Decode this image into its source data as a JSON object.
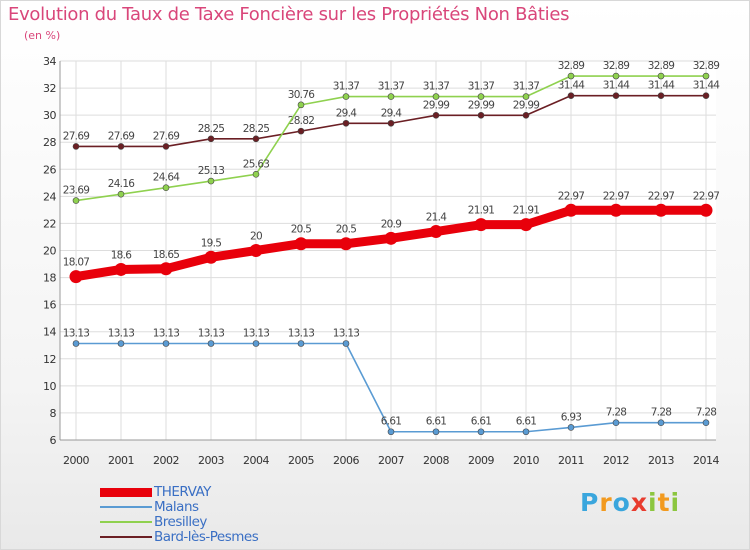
{
  "title": "Evolution du Taux de Taxe Foncière sur les Propriétés Non Bâties",
  "subtitle": "(en %)",
  "logo": {
    "letters": [
      "P",
      "r",
      "o",
      "x",
      "i",
      "t",
      "i"
    ],
    "colors": [
      "#3aa6dd",
      "#f29a1f",
      "#3aa6dd",
      "#e83c2e",
      "#8cc63f",
      "#f29a1f",
      "#8cc63f"
    ]
  },
  "chart_data": {
    "type": "line",
    "title": "Evolution du Taux de Taxe Foncière sur les Propriétés Non Bâties",
    "ylabel": "(en %)",
    "xlabel": "",
    "x": [
      "2000",
      "2001",
      "2002",
      "2003",
      "2004",
      "2005",
      "2006",
      "2007",
      "2008",
      "2009",
      "2010",
      "2011",
      "2012",
      "2013",
      "2014"
    ],
    "ylim": [
      6,
      34
    ],
    "yticks": [
      "6",
      "8",
      "10",
      "12",
      "14",
      "16",
      "18",
      "20",
      "22",
      "24",
      "26",
      "28",
      "30",
      "32",
      "34"
    ],
    "grid": true,
    "legend_position": "bottom-left",
    "series": [
      {
        "name": "THERVAY",
        "color": "#e8000b",
        "emphasis": "thick",
        "values": [
          18.07,
          18.6,
          18.65,
          19.5,
          20,
          20.5,
          20.5,
          20.9,
          21.4,
          21.91,
          21.91,
          22.97,
          22.97,
          22.97,
          22.97
        ],
        "labels": [
          "18.07",
          "18.6",
          "18.65",
          "19.5",
          "20",
          "20.5",
          "20.5",
          "20.9",
          "21.4",
          "21.91",
          "21.91",
          "22.97",
          "22.97",
          "22.97",
          "22.97"
        ]
      },
      {
        "name": "Malans",
        "color": "#5a9bd3",
        "values": [
          13.13,
          13.13,
          13.13,
          13.13,
          13.13,
          13.13,
          13.13,
          6.61,
          6.61,
          6.61,
          6.61,
          6.93,
          7.28,
          7.28,
          7.28
        ],
        "labels": [
          "13.13",
          "13.13",
          "13.13",
          "13.13",
          "13.13",
          "13.13",
          "13.13",
          "6.61",
          "6.61",
          "6.61",
          "6.61",
          "6.93",
          "7.28",
          "7.28",
          "7.28"
        ]
      },
      {
        "name": "Bresilley",
        "color": "#8fd14f",
        "values": [
          23.69,
          24.16,
          24.64,
          25.13,
          25.63,
          30.76,
          31.37,
          31.37,
          31.37,
          31.37,
          31.37,
          32.89,
          32.89,
          32.89,
          32.89
        ],
        "labels": [
          "23.69",
          "24.16",
          "24.64",
          "25.13",
          "25.63",
          "30.76",
          "31.37",
          "31.37",
          "31.37",
          "31.37",
          "31.37",
          "32.89",
          "32.89",
          "32.89",
          "32.89"
        ]
      },
      {
        "name": "Bard-lès-Pesmes",
        "color": "#6b1f24",
        "values": [
          27.69,
          27.69,
          27.69,
          28.25,
          28.25,
          28.82,
          29.4,
          29.4,
          29.99,
          29.99,
          29.99,
          31.44,
          31.44,
          31.44,
          31.44
        ],
        "labels": [
          "27.69",
          "27.69",
          "27.69",
          "28.25",
          "28.25",
          "28.82",
          "29.4",
          "29.4",
          "29.99",
          "29.99",
          "29.99",
          "31.44",
          "31.44",
          "31.44",
          "31.44"
        ]
      }
    ]
  }
}
